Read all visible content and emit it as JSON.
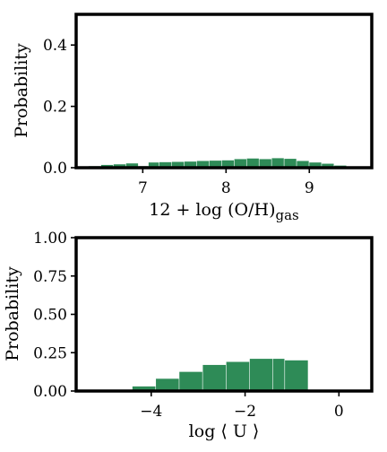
{
  "chart_data": [
    {
      "type": "bar",
      "xlabel_main": "12 + log (O/H)",
      "xlabel_sub": "gas",
      "ylabel": "Probability",
      "xlim": [
        6.2,
        9.75
      ],
      "ylim": [
        0,
        0.5
      ],
      "xticks": [
        7,
        8,
        9
      ],
      "xtick_labels": [
        "7",
        "8",
        "9"
      ],
      "yticks": [
        0.0,
        0.2,
        0.4
      ],
      "ytick_labels": [
        "0.0",
        "0.2",
        "0.4"
      ],
      "bar_color": "#2e8b57",
      "bins": [
        {
          "x0": 6.35,
          "x1": 6.5,
          "y": 0.005
        },
        {
          "x0": 6.5,
          "x1": 6.65,
          "y": 0.009
        },
        {
          "x0": 6.65,
          "x1": 6.8,
          "y": 0.011
        },
        {
          "x0": 6.8,
          "x1": 6.95,
          "y": 0.014
        },
        {
          "x0": 6.95,
          "x1": 7.07,
          "y": 0.005
        },
        {
          "x0": 7.07,
          "x1": 7.2,
          "y": 0.017
        },
        {
          "x0": 7.2,
          "x1": 7.35,
          "y": 0.018
        },
        {
          "x0": 7.35,
          "x1": 7.5,
          "y": 0.019
        },
        {
          "x0": 7.5,
          "x1": 7.65,
          "y": 0.02
        },
        {
          "x0": 7.65,
          "x1": 7.8,
          "y": 0.022
        },
        {
          "x0": 7.8,
          "x1": 7.95,
          "y": 0.023
        },
        {
          "x0": 7.95,
          "x1": 8.1,
          "y": 0.024
        },
        {
          "x0": 8.1,
          "x1": 8.25,
          "y": 0.028
        },
        {
          "x0": 8.25,
          "x1": 8.4,
          "y": 0.03
        },
        {
          "x0": 8.4,
          "x1": 8.55,
          "y": 0.028
        },
        {
          "x0": 8.55,
          "x1": 8.7,
          "y": 0.031
        },
        {
          "x0": 8.7,
          "x1": 8.85,
          "y": 0.029
        },
        {
          "x0": 8.85,
          "x1": 9.0,
          "y": 0.022
        },
        {
          "x0": 9.0,
          "x1": 9.15,
          "y": 0.017
        },
        {
          "x0": 9.15,
          "x1": 9.3,
          "y": 0.013
        },
        {
          "x0": 9.3,
          "x1": 9.45,
          "y": 0.007
        }
      ]
    },
    {
      "type": "bar",
      "xlabel": "log ⟨ U ⟩",
      "ylabel": "Probability",
      "xlim": [
        -5.6,
        0.7
      ],
      "ylim": [
        0,
        1.0
      ],
      "xticks": [
        -4,
        -2,
        0
      ],
      "xtick_labels": [
        "−4",
        "−2",
        "0"
      ],
      "yticks": [
        0.0,
        0.25,
        0.5,
        0.75,
        1.0
      ],
      "ytick_labels": [
        "0.00",
        "0.25",
        "0.50",
        "0.75",
        "1.00"
      ],
      "bar_color": "#2e8b57",
      "bins": [
        {
          "x0": -4.4,
          "x1": -3.9,
          "y": 0.03
        },
        {
          "x0": -3.9,
          "x1": -3.4,
          "y": 0.08
        },
        {
          "x0": -3.4,
          "x1": -2.9,
          "y": 0.125
        },
        {
          "x0": -2.9,
          "x1": -2.4,
          "y": 0.17
        },
        {
          "x0": -2.4,
          "x1": -1.9,
          "y": 0.19
        },
        {
          "x0": -1.9,
          "x1": -1.4,
          "y": 0.21
        },
        {
          "x0": -1.4,
          "x1": -1.15,
          "y": 0.21
        },
        {
          "x0": -1.15,
          "x1": -0.65,
          "y": 0.2
        }
      ]
    }
  ]
}
